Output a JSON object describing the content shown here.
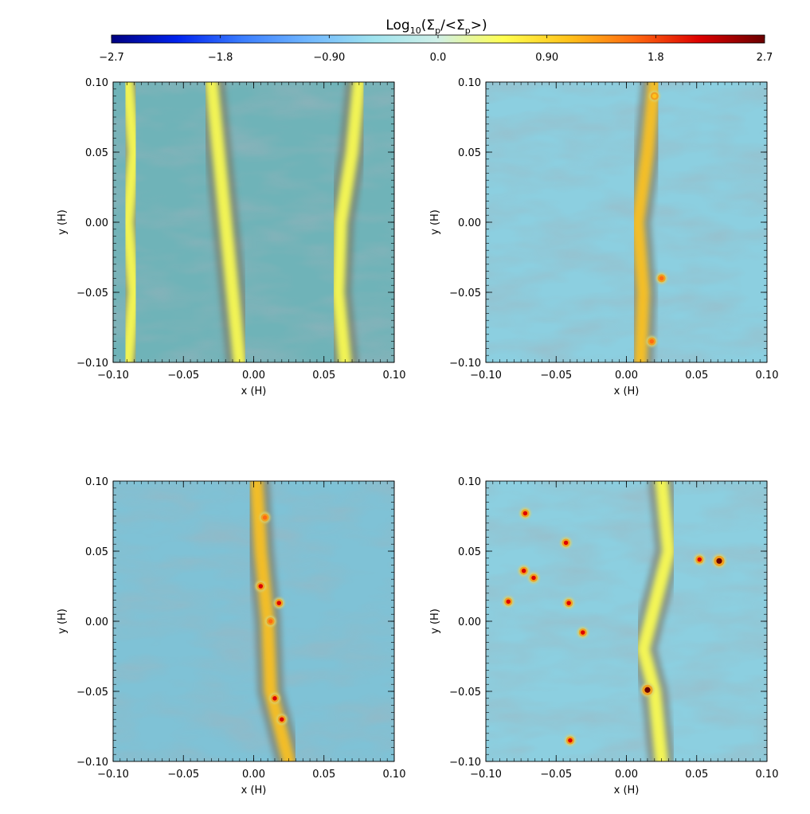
{
  "colorbar": {
    "label_text": "Log",
    "label_sub": "10",
    "label_math": "(Σ",
    "label_p1": "p",
    "label_mid": "/<Σ",
    "label_p2": "p",
    "label_end": ">)",
    "ticks": [
      "-2.7",
      "-1.8",
      "-0.90",
      "0.0",
      "0.90",
      "1.8",
      "2.7"
    ],
    "range": [
      -2.7,
      2.7
    ],
    "colormap": [
      "#000080",
      "#0022ee",
      "#3a7dff",
      "#6fb6ff",
      "#9fe3ee",
      "#d0f0e8",
      "#ffff50",
      "#ffc21a",
      "#ff6a10",
      "#dd0000",
      "#6a0000"
    ]
  },
  "chart_data": [
    {
      "type": "heatmap",
      "panel": "top-left",
      "xlabel": "x (H)",
      "ylabel": "y (H)",
      "xlim": [
        -0.1,
        0.1
      ],
      "ylim": [
        -0.1,
        0.1
      ],
      "xticks": [
        "-0.10",
        "-0.05",
        "0.00",
        "0.05",
        "0.10"
      ],
      "yticks": [
        "-0.10",
        "-0.05",
        "0.00",
        "0.05",
        "0.10"
      ],
      "filaments": [
        {
          "pts": [
            [
              -0.09,
              -0.1
            ],
            [
              -0.085,
              -0.05
            ],
            [
              -0.09,
              0.0
            ],
            [
              -0.085,
              0.05
            ],
            [
              -0.09,
              0.1
            ]
          ],
          "value": 0.7
        },
        {
          "pts": [
            [
              -0.01,
              -0.1
            ],
            [
              -0.015,
              -0.05
            ],
            [
              -0.02,
              0.0
            ],
            [
              -0.025,
              0.05
            ],
            [
              -0.03,
              0.1
            ]
          ],
          "value": 0.8
        },
        {
          "pts": [
            [
              0.065,
              -0.1
            ],
            [
              0.06,
              -0.05
            ],
            [
              0.062,
              0.0
            ],
            [
              0.07,
              0.05
            ],
            [
              0.075,
              0.1
            ]
          ],
          "value": 0.8
        }
      ],
      "clumps": []
    },
    {
      "type": "heatmap",
      "panel": "top-right",
      "xlabel": "x (H)",
      "ylabel": "y (H)",
      "xlim": [
        -0.1,
        0.1
      ],
      "ylim": [
        -0.1,
        0.1
      ],
      "xticks": [
        "-0.10",
        "-0.05",
        "0.00",
        "0.05",
        "0.10"
      ],
      "yticks": [
        "-0.10",
        "-0.05",
        "0.00",
        "0.05",
        "0.10"
      ],
      "filaments": [
        {
          "pts": [
            [
              0.01,
              -0.1
            ],
            [
              0.012,
              -0.05
            ],
            [
              0.008,
              0.0
            ],
            [
              0.015,
              0.05
            ],
            [
              0.02,
              0.1
            ]
          ],
          "value": 1.1
        }
      ],
      "clumps": [
        {
          "x": 0.018,
          "y": -0.085,
          "value": 1.6
        },
        {
          "x": 0.025,
          "y": -0.04,
          "value": 1.5
        },
        {
          "x": 0.02,
          "y": 0.09,
          "value": 1.3
        }
      ]
    },
    {
      "type": "heatmap",
      "panel": "bottom-left",
      "xlabel": "x (H)",
      "ylabel": "y (H)",
      "xlim": [
        -0.1,
        0.1
      ],
      "ylim": [
        -0.1,
        0.1
      ],
      "xticks": [
        "-0.10",
        "-0.05",
        "0.00",
        "0.05",
        "0.10"
      ],
      "yticks": [
        "-0.10",
        "-0.05",
        "0.00",
        "0.05",
        "0.10"
      ],
      "filaments": [
        {
          "pts": [
            [
              0.025,
              -0.1
            ],
            [
              0.012,
              -0.05
            ],
            [
              0.01,
              0.0
            ],
            [
              0.005,
              0.05
            ],
            [
              0.002,
              0.1
            ]
          ],
          "value": 1.2
        }
      ],
      "clumps": [
        {
          "x": 0.005,
          "y": 0.025,
          "value": 2.2
        },
        {
          "x": 0.018,
          "y": 0.013,
          "value": 2.1
        },
        {
          "x": 0.012,
          "y": 0.0,
          "value": 1.8
        },
        {
          "x": 0.015,
          "y": -0.055,
          "value": 2.0
        },
        {
          "x": 0.02,
          "y": -0.07,
          "value": 2.1
        },
        {
          "x": 0.008,
          "y": 0.074,
          "value": 1.7
        }
      ]
    },
    {
      "type": "heatmap",
      "panel": "bottom-right",
      "xlabel": "x (H)",
      "ylabel": "y (H)",
      "xlim": [
        -0.1,
        0.1
      ],
      "ylim": [
        -0.1,
        0.1
      ],
      "xticks": [
        "-0.10",
        "-0.05",
        "0.00",
        "0.05",
        "0.10"
      ],
      "yticks": [
        "-0.10",
        "-0.05",
        "0.00",
        "0.05",
        "0.10"
      ],
      "filaments": [
        {
          "pts": [
            [
              0.025,
              -0.1
            ],
            [
              0.02,
              -0.05
            ],
            [
              0.012,
              -0.02
            ],
            [
              0.03,
              0.05
            ],
            [
              0.025,
              0.1
            ]
          ],
          "value": 0.6
        }
      ],
      "clumps": [
        {
          "x": -0.072,
          "y": 0.077,
          "value": 2.3
        },
        {
          "x": -0.043,
          "y": 0.056,
          "value": 2.3
        },
        {
          "x": 0.052,
          "y": 0.044,
          "value": 2.2
        },
        {
          "x": 0.066,
          "y": 0.043,
          "value": 2.7
        },
        {
          "x": -0.073,
          "y": 0.036,
          "value": 2.3
        },
        {
          "x": -0.066,
          "y": 0.031,
          "value": 2.2
        },
        {
          "x": -0.084,
          "y": 0.014,
          "value": 2.2
        },
        {
          "x": -0.041,
          "y": 0.013,
          "value": 2.2
        },
        {
          "x": -0.031,
          "y": -0.008,
          "value": 2.3
        },
        {
          "x": 0.015,
          "y": -0.049,
          "value": 2.7
        },
        {
          "x": -0.04,
          "y": -0.085,
          "value": 2.3
        }
      ]
    }
  ]
}
